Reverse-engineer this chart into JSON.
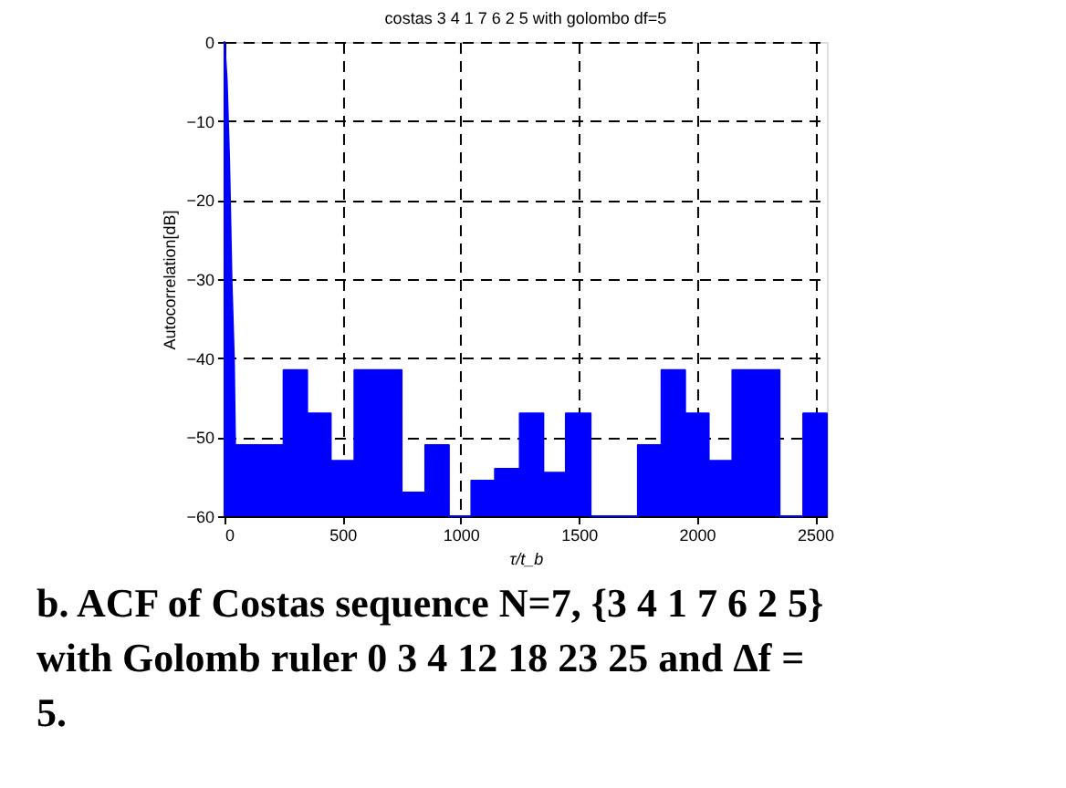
{
  "chart_data": {
    "type": "area",
    "title": "costas 3 4 1 7 6 2 5 with golombo df=5",
    "xlabel": "τ/t_b",
    "ylabel": "Autocorrelation[dB]",
    "series": [
      {
        "color": "#0000ff",
        "x": [
          0,
          0,
          10,
          20,
          30,
          40,
          45,
          250,
          250,
          350,
          350,
          450,
          450,
          550,
          550,
          750,
          750,
          850,
          850,
          950,
          950,
          1045,
          1045,
          1145,
          1145,
          1250,
          1250,
          1350,
          1350,
          1445,
          1445,
          1550,
          1550,
          1750,
          1750,
          1850,
          1850,
          1950,
          1950,
          2050,
          2050,
          2150,
          2150,
          2350,
          2350,
          2450,
          2450,
          2550,
          2550
        ],
        "values": [
          -60,
          0,
          -5,
          -15,
          -30,
          -40,
          -51,
          -51,
          -41.5,
          -41.5,
          -47,
          -47,
          -53,
          -53,
          -41.5,
          -41.5,
          -57,
          -57,
          -51,
          -51,
          -60,
          -60,
          -55.5,
          -55.5,
          -54,
          -54,
          -47,
          -47,
          -54.5,
          -54.5,
          -47,
          -47,
          -60,
          -60,
          -51,
          -51,
          -41.5,
          -41.5,
          -47,
          -47,
          -53,
          -53,
          -41.5,
          -41.5,
          -60,
          -60,
          -47,
          -47,
          -60
        ]
      }
    ],
    "xlim": [
      0,
      2550
    ],
    "ylim": [
      -60,
      0
    ],
    "xticks": [
      0,
      500,
      1000,
      1500,
      2000,
      2500
    ],
    "yticks": [
      -60,
      -50,
      -40,
      -30,
      -20,
      -10,
      0
    ],
    "grid": true,
    "annotations": [
      "b. ACF of Costas sequence N=7, {3 4 1 7 6 2 5} with Golomb ruler   0 3 4 12 18 23 25 and Δf = 5."
    ]
  }
}
